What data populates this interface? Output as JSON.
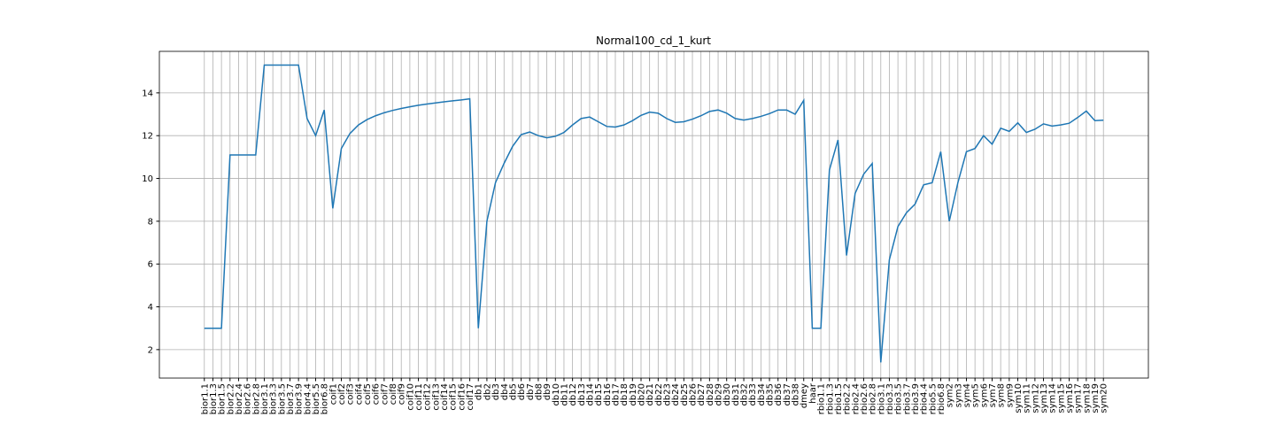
{
  "chart_data": {
    "type": "line",
    "title": "Normal100_cd_1_kurt",
    "categories": [
      "bior1.1",
      "bior1.3",
      "bior1.5",
      "bior2.2",
      "bior2.4",
      "bior2.6",
      "bior2.8",
      "bior3.1",
      "bior3.3",
      "bior3.5",
      "bior3.7",
      "bior3.9",
      "bior4.4",
      "bior5.5",
      "bior6.8",
      "coif1",
      "coif2",
      "coif3",
      "coif4",
      "coif5",
      "coif6",
      "coif7",
      "coif8",
      "coif9",
      "coif10",
      "coif11",
      "coif12",
      "coif13",
      "coif14",
      "coif15",
      "coif16",
      "coif17",
      "db1",
      "db2",
      "db3",
      "db4",
      "db5",
      "db6",
      "db7",
      "db8",
      "db9",
      "db10",
      "db11",
      "db12",
      "db13",
      "db14",
      "db15",
      "db16",
      "db17",
      "db18",
      "db19",
      "db20",
      "db21",
      "db22",
      "db23",
      "db24",
      "db25",
      "db26",
      "db27",
      "db28",
      "db29",
      "db30",
      "db31",
      "db32",
      "db33",
      "db34",
      "db35",
      "db36",
      "db37",
      "db38",
      "dmey",
      "haar",
      "rbio1.1",
      "rbio1.3",
      "rbio1.5",
      "rbio2.2",
      "rbio2.4",
      "rbio2.6",
      "rbio2.8",
      "rbio3.1",
      "rbio3.3",
      "rbio3.5",
      "rbio3.7",
      "rbio3.9",
      "rbio4.4",
      "rbio5.5",
      "rbio6.8",
      "sym2",
      "sym3",
      "sym4",
      "sym5",
      "sym6",
      "sym7",
      "sym8",
      "sym9",
      "sym10",
      "sym11",
      "sym12",
      "sym13",
      "sym14",
      "sym15",
      "sym16",
      "sym17",
      "sym18",
      "sym19",
      "sym20"
    ],
    "values": [
      3.0,
      3.0,
      3.0,
      11.1,
      11.1,
      11.1,
      11.1,
      15.3,
      15.3,
      15.3,
      15.3,
      15.3,
      12.8,
      12.0,
      13.2,
      8.6,
      11.4,
      12.1,
      12.5,
      12.75,
      12.93,
      13.07,
      13.18,
      13.27,
      13.35,
      13.42,
      13.48,
      13.53,
      13.58,
      13.63,
      13.67,
      13.72,
      3.0,
      8.0,
      9.8,
      10.7,
      11.5,
      12.05,
      12.17,
      12.0,
      11.9,
      11.97,
      12.15,
      12.5,
      12.8,
      12.87,
      12.65,
      12.43,
      12.4,
      12.5,
      12.7,
      12.95,
      13.1,
      13.05,
      12.8,
      12.62,
      12.65,
      12.77,
      12.93,
      13.13,
      13.2,
      13.05,
      12.8,
      12.73,
      12.8,
      12.9,
      13.03,
      13.2,
      13.2,
      13.0,
      13.65,
      3.0,
      3.0,
      10.4,
      11.8,
      6.4,
      9.3,
      10.2,
      10.7,
      1.4,
      6.2,
      7.75,
      8.4,
      8.8,
      9.7,
      9.8,
      11.25,
      8.0,
      9.8,
      11.25,
      11.4,
      12.0,
      11.6,
      12.35,
      12.2,
      12.6,
      12.15,
      12.3,
      12.55,
      12.45,
      12.5,
      12.58,
      12.85,
      13.15,
      12.7,
      12.72
    ],
    "color": "#1f77b4",
    "ylim": [
      0.67,
      15.94
    ],
    "yticks": [
      2,
      4,
      6,
      8,
      10,
      12,
      14
    ],
    "grid": true
  }
}
